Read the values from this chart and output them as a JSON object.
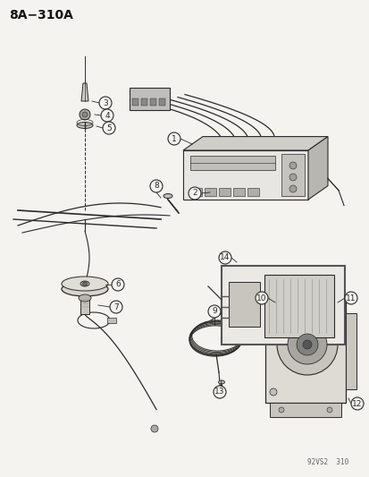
{
  "title": "8A−310A",
  "bg": "#f5f3f0",
  "lc": "#2a2a2a",
  "watermark": "92VS2  310",
  "fig_width": 4.14,
  "fig_height": 5.33,
  "dpi": 100
}
